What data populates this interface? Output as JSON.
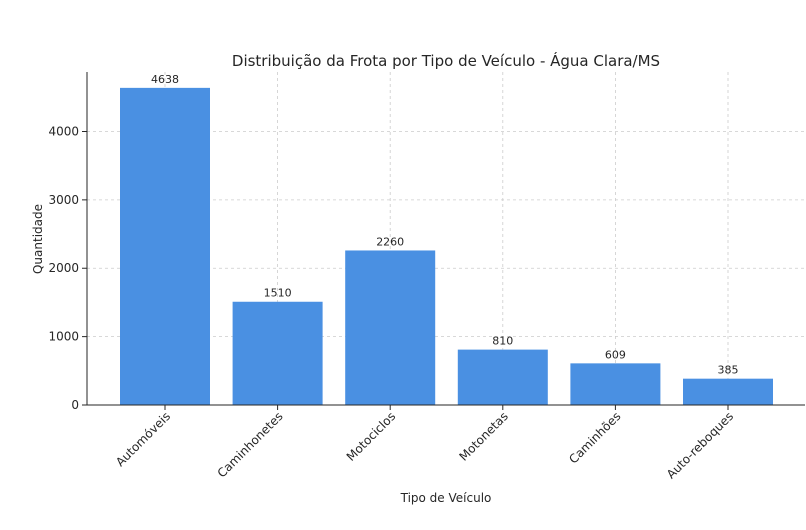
{
  "chart_data": {
    "type": "bar",
    "title": "Distribuição da Frota por Tipo de Veículo - Água Clara/MS",
    "xlabel": "Tipo de Veículo",
    "ylabel": "Quantidade",
    "categories": [
      "Automóveis",
      "Caminhonetes",
      "Motociclos",
      "Motonetas",
      "Caminhões",
      "Auto-reboques"
    ],
    "values": [
      4638,
      1510,
      2260,
      810,
      609,
      385
    ],
    "ylim": [
      0,
      4870
    ],
    "yticks": [
      0,
      1000,
      2000,
      3000,
      4000
    ],
    "grid": true,
    "bar_color": "#4a90e2"
  }
}
